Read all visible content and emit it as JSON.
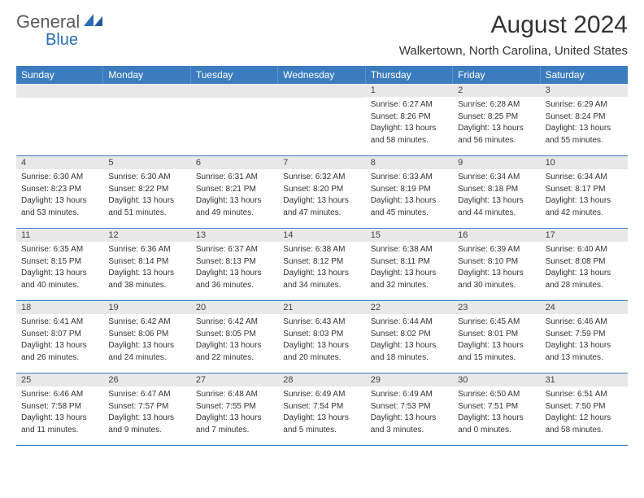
{
  "logo": {
    "text1": "General",
    "text2": "Blue"
  },
  "title": "August 2024",
  "location": "Walkertown, North Carolina, United States",
  "colors": {
    "header_bg": "#3b7cbf",
    "header_text": "#ffffff",
    "daynum_bg": "#e8e8e8",
    "border": "#3b7cbf",
    "text": "#333333",
    "logo_gray": "#5a5a5a",
    "logo_blue": "#2a6db5"
  },
  "day_headers": [
    "Sunday",
    "Monday",
    "Tuesday",
    "Wednesday",
    "Thursday",
    "Friday",
    "Saturday"
  ],
  "weeks": [
    [
      {
        "n": "",
        "sr": "",
        "ss": "",
        "dl": ""
      },
      {
        "n": "",
        "sr": "",
        "ss": "",
        "dl": ""
      },
      {
        "n": "",
        "sr": "",
        "ss": "",
        "dl": ""
      },
      {
        "n": "",
        "sr": "",
        "ss": "",
        "dl": ""
      },
      {
        "n": "1",
        "sr": "6:27 AM",
        "ss": "8:26 PM",
        "dl": "13 hours and 58 minutes."
      },
      {
        "n": "2",
        "sr": "6:28 AM",
        "ss": "8:25 PM",
        "dl": "13 hours and 56 minutes."
      },
      {
        "n": "3",
        "sr": "6:29 AM",
        "ss": "8:24 PM",
        "dl": "13 hours and 55 minutes."
      }
    ],
    [
      {
        "n": "4",
        "sr": "6:30 AM",
        "ss": "8:23 PM",
        "dl": "13 hours and 53 minutes."
      },
      {
        "n": "5",
        "sr": "6:30 AM",
        "ss": "8:22 PM",
        "dl": "13 hours and 51 minutes."
      },
      {
        "n": "6",
        "sr": "6:31 AM",
        "ss": "8:21 PM",
        "dl": "13 hours and 49 minutes."
      },
      {
        "n": "7",
        "sr": "6:32 AM",
        "ss": "8:20 PM",
        "dl": "13 hours and 47 minutes."
      },
      {
        "n": "8",
        "sr": "6:33 AM",
        "ss": "8:19 PM",
        "dl": "13 hours and 45 minutes."
      },
      {
        "n": "9",
        "sr": "6:34 AM",
        "ss": "8:18 PM",
        "dl": "13 hours and 44 minutes."
      },
      {
        "n": "10",
        "sr": "6:34 AM",
        "ss": "8:17 PM",
        "dl": "13 hours and 42 minutes."
      }
    ],
    [
      {
        "n": "11",
        "sr": "6:35 AM",
        "ss": "8:15 PM",
        "dl": "13 hours and 40 minutes."
      },
      {
        "n": "12",
        "sr": "6:36 AM",
        "ss": "8:14 PM",
        "dl": "13 hours and 38 minutes."
      },
      {
        "n": "13",
        "sr": "6:37 AM",
        "ss": "8:13 PM",
        "dl": "13 hours and 36 minutes."
      },
      {
        "n": "14",
        "sr": "6:38 AM",
        "ss": "8:12 PM",
        "dl": "13 hours and 34 minutes."
      },
      {
        "n": "15",
        "sr": "6:38 AM",
        "ss": "8:11 PM",
        "dl": "13 hours and 32 minutes."
      },
      {
        "n": "16",
        "sr": "6:39 AM",
        "ss": "8:10 PM",
        "dl": "13 hours and 30 minutes."
      },
      {
        "n": "17",
        "sr": "6:40 AM",
        "ss": "8:08 PM",
        "dl": "13 hours and 28 minutes."
      }
    ],
    [
      {
        "n": "18",
        "sr": "6:41 AM",
        "ss": "8:07 PM",
        "dl": "13 hours and 26 minutes."
      },
      {
        "n": "19",
        "sr": "6:42 AM",
        "ss": "8:06 PM",
        "dl": "13 hours and 24 minutes."
      },
      {
        "n": "20",
        "sr": "6:42 AM",
        "ss": "8:05 PM",
        "dl": "13 hours and 22 minutes."
      },
      {
        "n": "21",
        "sr": "6:43 AM",
        "ss": "8:03 PM",
        "dl": "13 hours and 20 minutes."
      },
      {
        "n": "22",
        "sr": "6:44 AM",
        "ss": "8:02 PM",
        "dl": "13 hours and 18 minutes."
      },
      {
        "n": "23",
        "sr": "6:45 AM",
        "ss": "8:01 PM",
        "dl": "13 hours and 15 minutes."
      },
      {
        "n": "24",
        "sr": "6:46 AM",
        "ss": "7:59 PM",
        "dl": "13 hours and 13 minutes."
      }
    ],
    [
      {
        "n": "25",
        "sr": "6:46 AM",
        "ss": "7:58 PM",
        "dl": "13 hours and 11 minutes."
      },
      {
        "n": "26",
        "sr": "6:47 AM",
        "ss": "7:57 PM",
        "dl": "13 hours and 9 minutes."
      },
      {
        "n": "27",
        "sr": "6:48 AM",
        "ss": "7:55 PM",
        "dl": "13 hours and 7 minutes."
      },
      {
        "n": "28",
        "sr": "6:49 AM",
        "ss": "7:54 PM",
        "dl": "13 hours and 5 minutes."
      },
      {
        "n": "29",
        "sr": "6:49 AM",
        "ss": "7:53 PM",
        "dl": "13 hours and 3 minutes."
      },
      {
        "n": "30",
        "sr": "6:50 AM",
        "ss": "7:51 PM",
        "dl": "13 hours and 0 minutes."
      },
      {
        "n": "31",
        "sr": "6:51 AM",
        "ss": "7:50 PM",
        "dl": "12 hours and 58 minutes."
      }
    ]
  ],
  "labels": {
    "sunrise": "Sunrise:",
    "sunset": "Sunset:",
    "daylight": "Daylight:"
  }
}
